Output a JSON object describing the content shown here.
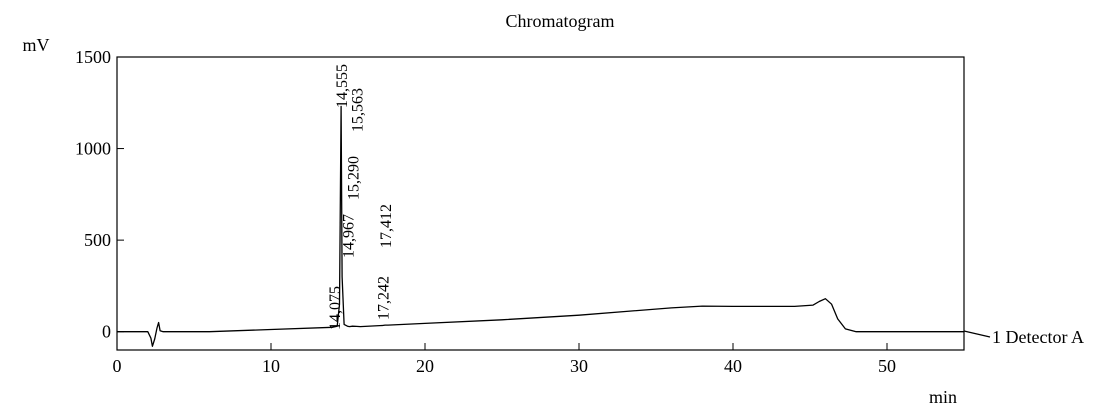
{
  "chart_data": {
    "type": "line",
    "title": "Chromatogram",
    "xlabel": "min",
    "ylabel": "mV",
    "xlim": [
      0,
      55
    ],
    "ylim": [
      -100,
      1500
    ],
    "x_ticks": [
      0,
      10,
      20,
      30,
      40,
      50
    ],
    "y_ticks": [
      0,
      500,
      1000,
      1500
    ],
    "grid": false,
    "series": [
      {
        "name": "1 Detector A",
        "color": "#000000",
        "x": [
          0,
          2.0,
          2.2,
          2.3,
          2.45,
          2.6,
          2.7,
          2.8,
          3.0,
          6.0,
          10.0,
          14.0,
          14.3,
          14.45,
          14.555,
          14.62,
          14.75,
          14.967,
          15.1,
          15.29,
          15.563,
          15.8,
          17.242,
          17.412,
          17.6,
          20,
          25,
          30,
          33,
          36,
          38,
          40,
          44,
          45.2,
          45.6,
          46.0,
          46.4,
          46.8,
          47.3,
          48.0,
          50,
          55
        ],
        "y": [
          0,
          0,
          -35,
          -80,
          -40,
          20,
          50,
          5,
          0,
          0,
          12,
          24,
          30,
          150,
          1230,
          300,
          40,
          30,
          28,
          30,
          29,
          28,
          34,
          36,
          36,
          45,
          65,
          90,
          110,
          130,
          140,
          138,
          138,
          145,
          165,
          180,
          150,
          70,
          15,
          0,
          0,
          0
        ]
      }
    ],
    "peak_labels": [
      {
        "text": "14,075",
        "x": 14.075
      },
      {
        "text": "14,555",
        "x": 14.555
      },
      {
        "text": "14,967",
        "x": 14.967
      },
      {
        "text": "15,290",
        "x": 15.29
      },
      {
        "text": "15,563",
        "x": 15.563
      },
      {
        "text": "17,242",
        "x": 17.242
      },
      {
        "text": "17,412",
        "x": 17.412
      }
    ],
    "legend": {
      "text": "1 Detector A",
      "placement": "right"
    }
  }
}
